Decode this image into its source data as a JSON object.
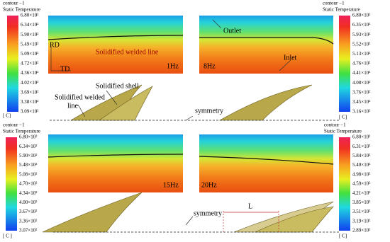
{
  "colorbars": [
    {
      "title": "contour −1",
      "subtitle": "Static Temperature",
      "unit": "[ C]",
      "labels": [
        "6.80×10²",
        "6.34×10²",
        "5.90×10²",
        "5.49×10²",
        "5.09×10²",
        "4.72×10²",
        "4.36×10²",
        "4.02×10²",
        "3.69×10²",
        "3.38×10²",
        "3.09×10²"
      ]
    },
    {
      "title": "contour −1",
      "subtitle": "Static Temperature",
      "unit": "[ C]",
      "labels": [
        "6.80×10²",
        "6.35×10²",
        "5.93×10²",
        "5.52×10²",
        "5.13×10²",
        "4.76×10²",
        "4.41×10²",
        "4.08×10²",
        "3.76×10²",
        "3.45×10²",
        "3.16×10²"
      ]
    },
    {
      "title": "contour −1",
      "subtitle": "Static Temperature",
      "unit": "[ C ]",
      "labels": [
        "6.80×10²",
        "6.34×10²",
        "5.90×10²",
        "5.48×10²",
        "5.08×10²",
        "4.70×10²",
        "4.34×10²",
        "4.00×10²",
        "3.67×10²",
        "3.36×10²",
        "3.07×10²"
      ]
    },
    {
      "title": "contour −1",
      "subtitle": "Static Temperature",
      "unit": "[ C]",
      "labels": [
        "6.80×10²",
        "6.31×10²",
        "5.84×10²",
        "5.40×10²",
        "4.98×10²",
        "4.59×10²",
        "4.21×10²",
        "3.85×10²",
        "3.51×10²",
        "3.19×10²",
        "2.89×10²"
      ]
    }
  ],
  "panels": [
    "1Hz",
    "8Hz",
    "15Hz",
    "20Hz"
  ],
  "annotations": {
    "outlet": "Outlet",
    "inlet": "Inlet",
    "welded_line": "Solidified welded line",
    "rd": "RD",
    "td": "TD",
    "shell": "Solidified shell",
    "welded_line_2a": "Solidified welded",
    "welded_line_2b": "line",
    "symmetry_top": "symmetry",
    "symmetry_bottom": "symmetry",
    "length": "L"
  }
}
